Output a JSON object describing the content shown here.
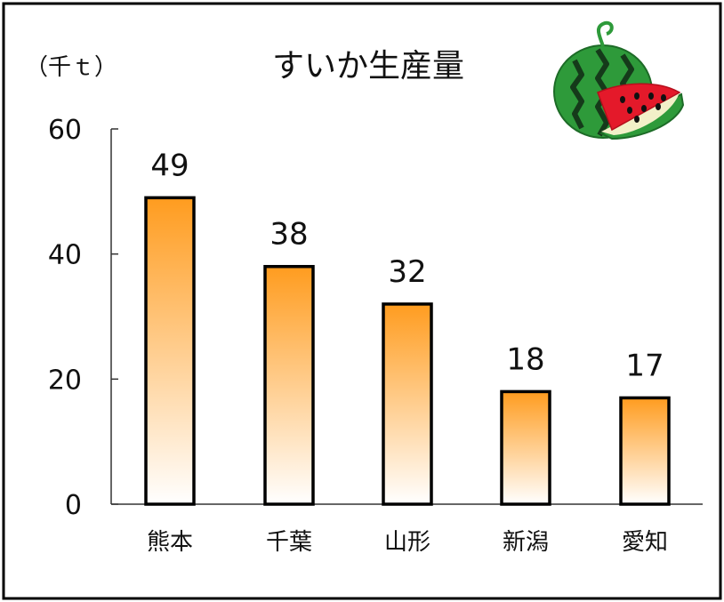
{
  "chart_data": {
    "type": "bar",
    "title": "すいか生産量",
    "unit_label": "（千ｔ）",
    "categories": [
      "熊本",
      "千葉",
      "山形",
      "新潟",
      "愛知"
    ],
    "values": [
      49,
      38,
      32,
      18,
      17
    ],
    "data_labels": [
      "49",
      "38",
      "32",
      "18",
      "17"
    ],
    "ylim": [
      0,
      60
    ],
    "yticks": [
      0,
      20,
      40,
      60
    ],
    "ytick_labels": [
      "0",
      "20",
      "40",
      "60"
    ],
    "bar_gradient": {
      "top": "#ff9c1f",
      "bottom": "#ffffff"
    },
    "bar_outline": "#000000",
    "grid": false,
    "legend": "none",
    "decoration": "watermelon-icon"
  }
}
